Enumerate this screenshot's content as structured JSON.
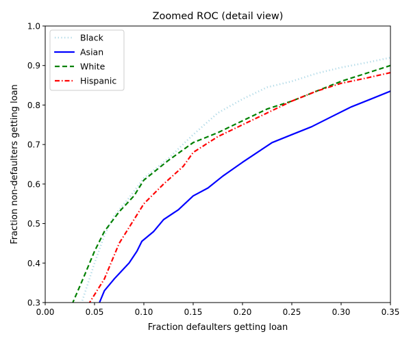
{
  "chart_data": {
    "type": "line",
    "title": "Zoomed ROC (detail view)",
    "xlabel": "Fraction defaulters getting loan",
    "ylabel": "Fraction non-defaulters getting loan",
    "xlim": [
      0.0,
      0.35
    ],
    "ylim": [
      0.3,
      1.0
    ],
    "xticks": [
      "0.00",
      "0.05",
      "0.10",
      "0.15",
      "0.20",
      "0.25",
      "0.30",
      "0.35"
    ],
    "xtick_values": [
      0.0,
      0.05,
      0.1,
      0.15,
      0.2,
      0.25,
      0.3,
      0.35
    ],
    "yticks": [
      "0.3",
      "0.4",
      "0.5",
      "0.6",
      "0.7",
      "0.8",
      "0.9",
      "1.0"
    ],
    "ytick_values": [
      0.3,
      0.4,
      0.5,
      0.6,
      0.7,
      0.8,
      0.9,
      1.0
    ],
    "grid": false,
    "legend_position": "top-left",
    "series": [
      {
        "name": "Black",
        "color": "#add8e6",
        "style": "dotted",
        "x": [
          0.03,
          0.037,
          0.05,
          0.06,
          0.07,
          0.085,
          0.1,
          0.125,
          0.15,
          0.175,
          0.2,
          0.225,
          0.25,
          0.275,
          0.3,
          0.325,
          0.35
        ],
        "y": [
          0.26,
          0.3,
          0.4,
          0.47,
          0.52,
          0.565,
          0.615,
          0.665,
          0.725,
          0.78,
          0.815,
          0.845,
          0.86,
          0.88,
          0.895,
          0.907,
          0.92
        ]
      },
      {
        "name": "Asian",
        "color": "#0000ff",
        "style": "solid",
        "x": [
          0.05,
          0.055,
          0.06,
          0.07,
          0.085,
          0.093,
          0.098,
          0.11,
          0.12,
          0.135,
          0.15,
          0.165,
          0.18,
          0.2,
          0.215,
          0.23,
          0.25,
          0.27,
          0.29,
          0.31,
          0.33,
          0.35
        ],
        "y": [
          0.27,
          0.3,
          0.33,
          0.36,
          0.4,
          0.43,
          0.455,
          0.48,
          0.51,
          0.535,
          0.57,
          0.59,
          0.62,
          0.655,
          0.68,
          0.705,
          0.725,
          0.745,
          0.77,
          0.795,
          0.815,
          0.835
        ]
      },
      {
        "name": "White",
        "color": "#008000",
        "style": "dashed",
        "x": [
          0.022,
          0.028,
          0.04,
          0.05,
          0.06,
          0.075,
          0.09,
          0.1,
          0.125,
          0.15,
          0.175,
          0.2,
          0.225,
          0.25,
          0.275,
          0.3,
          0.325,
          0.35
        ],
        "y": [
          0.26,
          0.3,
          0.37,
          0.43,
          0.48,
          0.53,
          0.57,
          0.61,
          0.66,
          0.705,
          0.73,
          0.76,
          0.79,
          0.81,
          0.835,
          0.86,
          0.88,
          0.9
        ]
      },
      {
        "name": "Hispanic",
        "color": "#ff0000",
        "style": "dashdot",
        "x": [
          0.04,
          0.045,
          0.06,
          0.075,
          0.09,
          0.1,
          0.12,
          0.14,
          0.15,
          0.175,
          0.2,
          0.225,
          0.25,
          0.275,
          0.3,
          0.325,
          0.35
        ],
        "y": [
          0.27,
          0.3,
          0.36,
          0.45,
          0.51,
          0.55,
          0.6,
          0.645,
          0.68,
          0.72,
          0.75,
          0.78,
          0.81,
          0.835,
          0.855,
          0.868,
          0.882
        ]
      }
    ]
  }
}
